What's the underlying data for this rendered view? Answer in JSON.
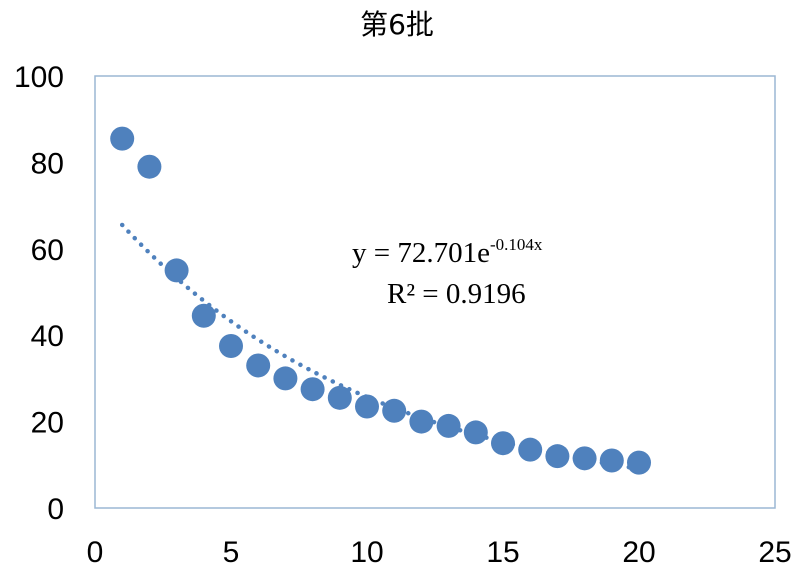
{
  "chart_data": {
    "type": "scatter",
    "title": "第6批",
    "xlabel": "",
    "ylabel": "",
    "xlim": [
      0,
      25
    ],
    "ylim": [
      0,
      100
    ],
    "x_ticks": [
      0,
      5,
      10,
      15,
      20,
      25
    ],
    "y_ticks": [
      0,
      20,
      40,
      60,
      80,
      100
    ],
    "grid": false,
    "legend": "none",
    "series": [
      {
        "x": [
          1,
          2,
          3,
          4,
          5,
          6,
          7,
          8,
          9,
          10,
          11,
          12,
          13,
          14,
          15,
          16,
          17,
          18,
          19,
          20
        ],
        "y": [
          85.5,
          79,
          55,
          44.5,
          37.5,
          33,
          30,
          27.5,
          25.5,
          23.5,
          22.5,
          20,
          19,
          17.5,
          15,
          13.5,
          12,
          11.5,
          11,
          10.5
        ],
        "color": "#4f81bd"
      }
    ],
    "trendline": {
      "type": "exponential",
      "a": 72.701,
      "b": -0.104,
      "style": "dotted",
      "color": "#4f81bd",
      "x_range": [
        1,
        20
      ],
      "equation_prefix": "y = 72.701e",
      "equation_exponent": "-0.104x",
      "r2_prefix": "R² = ",
      "r2_value": "0.9196"
    }
  }
}
